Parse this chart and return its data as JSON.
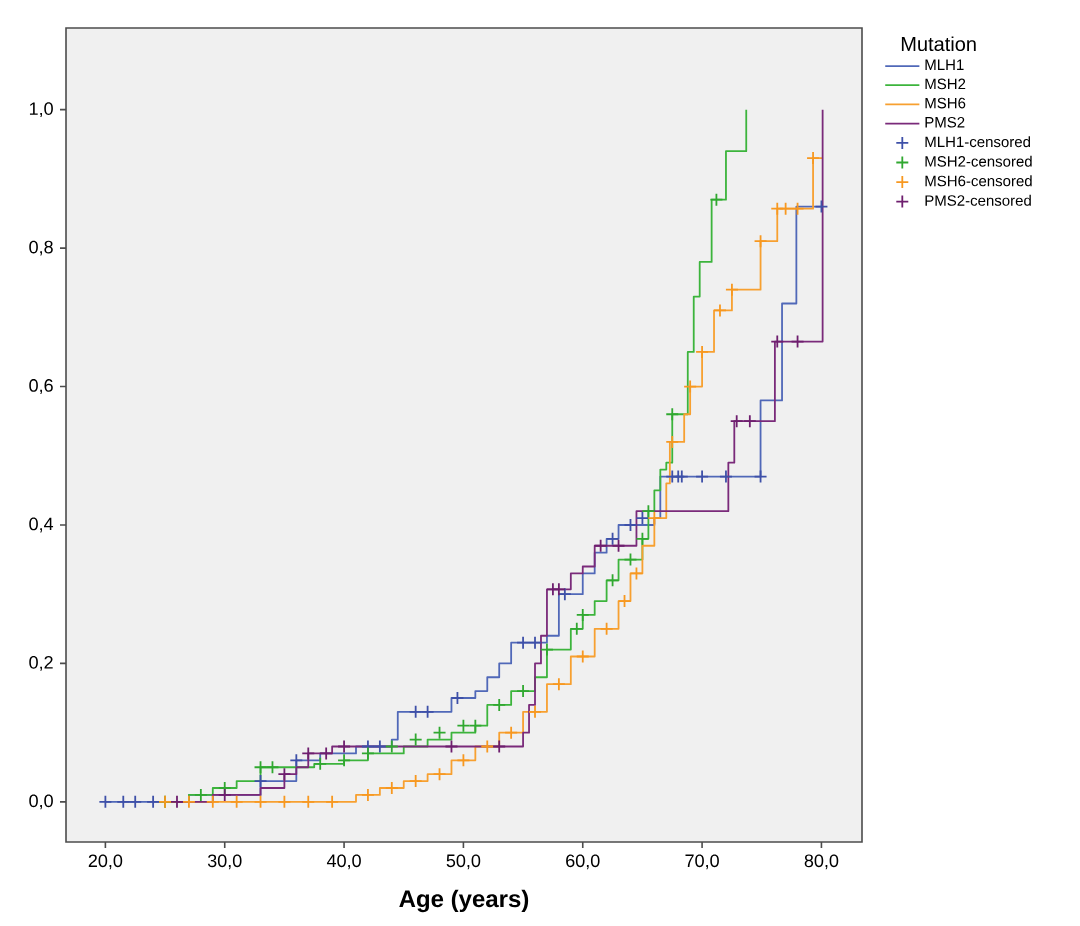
{
  "chart_data": {
    "type": "step",
    "xlabel": "Age (years)",
    "legend_title": "Mutation",
    "legend": "right",
    "xlim": [
      16.7,
      83.4
    ],
    "ylim": [
      -0.058,
      1.118
    ],
    "xticks": [
      {
        "value": 20,
        "label": "20,0"
      },
      {
        "value": 30,
        "label": "30,0"
      },
      {
        "value": 40,
        "label": "40,0"
      },
      {
        "value": 50,
        "label": "50,0"
      },
      {
        "value": 60,
        "label": "60,0"
      },
      {
        "value": 70,
        "label": "70,0"
      },
      {
        "value": 80,
        "label": "80,0"
      }
    ],
    "yticks": [
      {
        "value": 0,
        "label": "0,0"
      },
      {
        "value": 0.2,
        "label": "0,2"
      },
      {
        "value": 0.4,
        "label": "0,4"
      },
      {
        "value": 0.6,
        "label": "0,6"
      },
      {
        "value": 0.8,
        "label": "0,8"
      },
      {
        "value": 1.0,
        "label": "1,0"
      }
    ],
    "series": [
      {
        "name": "MLH1",
        "color": "#5068b8",
        "x": [
          20,
          27,
          33,
          36,
          38,
          41,
          44,
          44.5,
          49,
          51,
          52,
          53,
          54,
          57,
          58,
          60,
          61,
          62,
          63,
          66,
          66.5,
          74.9,
          76.7,
          77.9,
          80.1
        ],
        "values": [
          0,
          0.01,
          0.03,
          0.06,
          0.07,
          0.08,
          0.09,
          0.13,
          0.15,
          0.16,
          0.18,
          0.2,
          0.23,
          0.24,
          0.3,
          0.33,
          0.36,
          0.38,
          0.4,
          0.41,
          0.47,
          0.58,
          0.72,
          0.86,
          0.86
        ]
      },
      {
        "name": "MSH2",
        "color": "#3cb43c",
        "x": [
          25,
          27,
          29,
          31,
          33,
          37.5,
          40,
          42,
          45,
          47,
          49,
          51,
          52,
          54,
          56,
          57,
          59,
          60,
          61,
          62,
          63,
          65,
          65.5,
          66,
          66.5,
          67,
          67.5,
          68.8,
          69.3,
          69.8,
          70.8,
          72,
          73.7
        ],
        "values": [
          0,
          0.01,
          0.02,
          0.03,
          0.05,
          0.055,
          0.06,
          0.07,
          0.08,
          0.09,
          0.1,
          0.11,
          0.14,
          0.16,
          0.18,
          0.22,
          0.25,
          0.27,
          0.29,
          0.32,
          0.35,
          0.38,
          0.42,
          0.45,
          0.48,
          0.49,
          0.56,
          0.65,
          0.73,
          0.78,
          0.87,
          0.94,
          1.0
        ]
      },
      {
        "name": "MSH6",
        "color": "#f7a030",
        "x": [
          25,
          40,
          41,
          43,
          45,
          47,
          49,
          51,
          53,
          55,
          57,
          59,
          61,
          63,
          64,
          65,
          66,
          67,
          67.3,
          68.5,
          69,
          70,
          71,
          72.5,
          74.9,
          76.3,
          79.3,
          80.1
        ],
        "values": [
          0,
          0,
          0.01,
          0.02,
          0.03,
          0.04,
          0.06,
          0.08,
          0.1,
          0.13,
          0.17,
          0.21,
          0.25,
          0.29,
          0.33,
          0.37,
          0.41,
          0.46,
          0.52,
          0.56,
          0.6,
          0.65,
          0.71,
          0.74,
          0.81,
          0.857,
          0.93,
          0.93
        ]
      },
      {
        "name": "PMS2",
        "color": "#7a2a7a",
        "x": [
          26,
          29,
          33,
          35,
          36,
          37,
          39,
          53.5,
          55,
          55.5,
          56,
          56.5,
          57,
          59,
          60,
          61,
          64.5,
          72.2,
          72.7,
          76.1,
          80.1
        ],
        "values": [
          0,
          0.01,
          0.02,
          0.04,
          0.05,
          0.07,
          0.08,
          0.08,
          0.1,
          0.14,
          0.2,
          0.24,
          0.307,
          0.33,
          0.34,
          0.37,
          0.42,
          0.49,
          0.55,
          0.665,
          1.0
        ]
      },
      {
        "name": "MLH1-censored",
        "type": "scatter",
        "marker": "cross",
        "color": "#3e50a8",
        "x": [
          20,
          21.5,
          22.5,
          24,
          33,
          36,
          42,
          43,
          46,
          47,
          49.5,
          55,
          56,
          58.5,
          62.5,
          64,
          65,
          67.5,
          68,
          68.3,
          70,
          72,
          74.9,
          80
        ],
        "values": [
          0,
          0,
          0,
          0,
          0.03,
          0.06,
          0.08,
          0.08,
          0.13,
          0.13,
          0.15,
          0.23,
          0.23,
          0.3,
          0.38,
          0.4,
          0.41,
          0.47,
          0.47,
          0.47,
          0.47,
          0.47,
          0.47,
          0.86
        ]
      },
      {
        "name": "MSH2-censored",
        "type": "scatter",
        "marker": "cross",
        "color": "#30a830",
        "x": [
          25,
          28,
          30,
          33,
          34,
          38,
          40,
          42,
          44,
          46,
          48,
          50,
          51,
          53,
          55,
          57,
          59.5,
          60,
          62.5,
          64,
          65,
          65.5,
          67.5,
          71.2
        ],
        "values": [
          0,
          0.01,
          0.02,
          0.05,
          0.05,
          0.055,
          0.06,
          0.07,
          0.08,
          0.09,
          0.1,
          0.11,
          0.11,
          0.14,
          0.16,
          0.22,
          0.25,
          0.27,
          0.32,
          0.35,
          0.38,
          0.42,
          0.56,
          0.87
        ]
      },
      {
        "name": "MSH6-censored",
        "type": "scatter",
        "marker": "cross",
        "color": "#f79820",
        "x": [
          25,
          27,
          29,
          31,
          33,
          35,
          37,
          39,
          42,
          44,
          46,
          48,
          50,
          52,
          54,
          56,
          58,
          60,
          62,
          63.5,
          64.5,
          66,
          67.5,
          69,
          70,
          71.5,
          72.5,
          74.9,
          76.3,
          77,
          78,
          79.3
        ],
        "values": [
          0,
          0,
          0,
          0,
          0,
          0,
          0,
          0,
          0.01,
          0.02,
          0.03,
          0.04,
          0.06,
          0.08,
          0.1,
          0.13,
          0.17,
          0.21,
          0.25,
          0.29,
          0.33,
          0.41,
          0.52,
          0.6,
          0.65,
          0.71,
          0.74,
          0.81,
          0.857,
          0.857,
          0.857,
          0.93
        ]
      },
      {
        "name": "PMS2-censored",
        "type": "scatter",
        "marker": "cross",
        "color": "#6e1e6e",
        "x": [
          26,
          30,
          35,
          37,
          38.5,
          40,
          49,
          53,
          57.5,
          58,
          61.5,
          63,
          72.9,
          74,
          76.3,
          78
        ],
        "values": [
          0,
          0.01,
          0.04,
          0.07,
          0.07,
          0.08,
          0.08,
          0.08,
          0.307,
          0.307,
          0.37,
          0.37,
          0.55,
          0.55,
          0.665,
          0.665
        ]
      }
    ]
  }
}
